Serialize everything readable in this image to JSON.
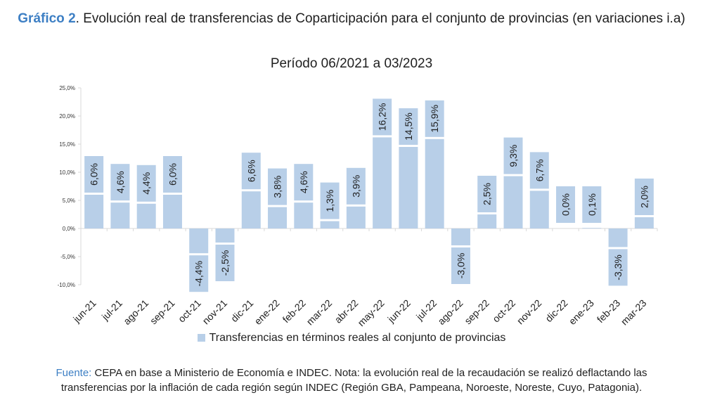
{
  "title": {
    "prefix": "Gráfico 2",
    "dot": ".",
    "text": " Evolución real de transferencias de Coparticipación para el conjunto de provincias (en variaciones i.a)",
    "subtitle": "Período 06/2021 a 03/2023"
  },
  "legend": {
    "label": "Transferencias en términos reales al conjunto de provincias",
    "swatch": "light-blue-square"
  },
  "source": {
    "label": "Fuente:",
    "text": " CEPA en base a Ministerio de Economía e INDEC. Nota: la evolución real de la recaudación se realizó deflactando las transferencias por la inflación de cada región según INDEC (Región GBA, Pampeana, Noroeste, Noreste, Cuyo, Patagonia)."
  },
  "colors": {
    "bar": "#b8cfe8",
    "label_box": "#b8cfe8",
    "accent": "#3d7fc4",
    "axis": "#d9d9d9"
  },
  "chart_data": {
    "type": "bar",
    "categories": [
      "jun-21",
      "jul-21",
      "ago-21",
      "sep-21",
      "oct-21",
      "nov-21",
      "dic-21",
      "ene-22",
      "feb-22",
      "mar-22",
      "abr-22",
      "may-22",
      "jun-22",
      "jul-22",
      "ago-22",
      "sep-22",
      "oct-22",
      "nov-22",
      "dic-22",
      "ene-23",
      "feb-23",
      "mar-23"
    ],
    "values": [
      6.0,
      4.6,
      4.4,
      6.0,
      -4.4,
      -2.5,
      6.6,
      3.8,
      4.6,
      1.3,
      3.9,
      16.2,
      14.5,
      15.9,
      -3.0,
      2.5,
      9.3,
      6.7,
      0.0,
      0.1,
      -3.3,
      2.0
    ],
    "data_labels": [
      "6,0%",
      "4,6%",
      "4,4%",
      "6,0%",
      "-4,4%",
      "-2,5%",
      "6,6%",
      "3,8%",
      "4,6%",
      "1,3%",
      "3,9%",
      "16,2%",
      "14,5%",
      "15,9%",
      "-3,0%",
      "2,5%",
      "9,3%",
      "6,7%",
      "0,0%",
      "0,1%",
      "-3,3%",
      "2,0%"
    ],
    "yticks": [
      25,
      20,
      15,
      10,
      5,
      0,
      -5,
      -10
    ],
    "ytick_labels": [
      "25,0%",
      "20,0%",
      "15,0%",
      "10,0%",
      "5,0%",
      "0,0%",
      "-5,0%",
      "-10,0%"
    ],
    "ylim": [
      -10,
      25
    ],
    "series": [
      {
        "name": "Transferencias en términos reales al conjunto de provincias",
        "values": [
          6.0,
          4.6,
          4.4,
          6.0,
          -4.4,
          -2.5,
          6.6,
          3.8,
          4.6,
          1.3,
          3.9,
          16.2,
          14.5,
          15.9,
          -3.0,
          2.5,
          9.3,
          6.7,
          0.0,
          0.1,
          -3.3,
          2.0
        ]
      }
    ],
    "grid": false,
    "legend_position": "bottom"
  }
}
